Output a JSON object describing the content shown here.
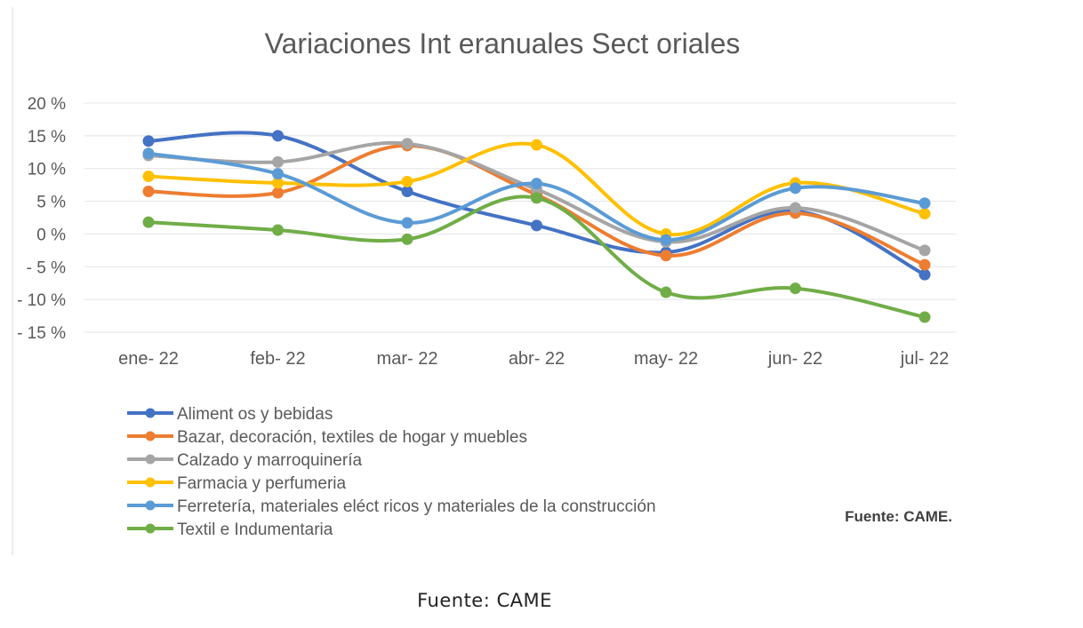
{
  "chart_data": {
    "type": "line",
    "title": "Variaciones Int eranuales Sect oriales",
    "categories": [
      "ene- 22",
      "feb- 22",
      "mar- 22",
      "abr- 22",
      "may- 22",
      "jun- 22",
      "jul- 22"
    ],
    "y_ticks": [
      {
        "value": 20,
        "label": "20 %"
      },
      {
        "value": 15,
        "label": "15 %"
      },
      {
        "value": 10,
        "label": "10 %"
      },
      {
        "value": 5,
        "label": "5 %"
      },
      {
        "value": 0,
        "label": "0 %"
      },
      {
        "value": -5,
        "label": "- 5 %"
      },
      {
        "value": -10,
        "label": "- 10 %"
      },
      {
        "value": -15,
        "label": "- 15 %"
      }
    ],
    "ylim": [
      -15,
      20
    ],
    "xlabel": "",
    "ylabel": "",
    "grid": true,
    "legend_position": "bottom-left",
    "series": [
      {
        "name": "Aliment os y bebidas",
        "color": "#4472C4",
        "values": [
          14.2,
          15.0,
          6.5,
          1.3,
          -2.8,
          3.5,
          -6.2
        ]
      },
      {
        "name": "Bazar, decoración, textiles de hogar y muebles",
        "color": "#ED7D31",
        "values": [
          6.5,
          6.3,
          13.5,
          6.0,
          -3.3,
          3.2,
          -4.7
        ]
      },
      {
        "name": "Calzado y marroquinería",
        "color": "#A5A5A5",
        "values": [
          12.0,
          11.0,
          13.8,
          6.8,
          -1.2,
          4.0,
          -2.5
        ]
      },
      {
        "name": "Farmacia y perfumeria",
        "color": "#FFC000",
        "values": [
          8.8,
          7.8,
          8.0,
          13.6,
          0.0,
          7.8,
          3.1
        ]
      },
      {
        "name": "Ferretería, materiales eléct ricos y materiales de la construcción",
        "color": "#5B9BD5",
        "values": [
          12.3,
          9.2,
          1.7,
          7.7,
          -0.9,
          7.0,
          4.7
        ]
      },
      {
        "name": "Textil e Indumentaria",
        "color": "#70AD47",
        "values": [
          1.8,
          0.6,
          -0.8,
          5.5,
          -8.9,
          -8.3,
          -12.7
        ]
      }
    ],
    "annotation": "Fuente: CAME."
  },
  "caption": "Fuente: CAME"
}
